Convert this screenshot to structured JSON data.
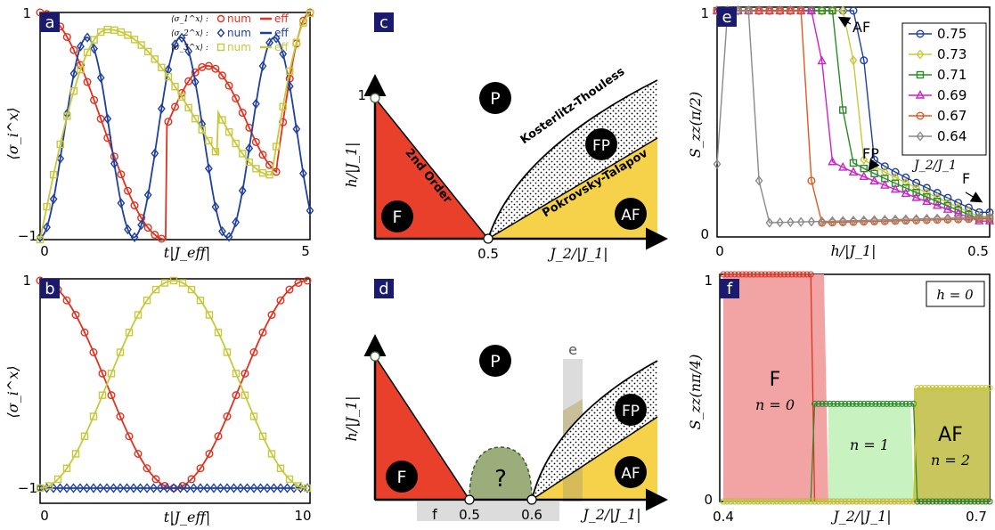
{
  "colors": {
    "red": "#e0321f",
    "blue": "#1f3f9f",
    "yellow": "#c8c83c",
    "green": "#2a8a2a",
    "magenta": "#cc22cc",
    "orange": "#e05a20",
    "gray": "#8a8a8a",
    "navy": "#1a1a6e",
    "redfill": "#e8402a",
    "yellowfill": "#f5d24a",
    "greenfill": "#9aad7a"
  },
  "panel_labels": {
    "a": "a",
    "b": "b",
    "c": "c",
    "d": "d",
    "e": "e",
    "f": "f"
  },
  "panel_a": {
    "ylabel": "⟨σ_i^x⟩",
    "xlabel": "t|J_eff|",
    "y_ticks": [
      "1",
      "−1"
    ],
    "x_ticks": [
      "0",
      "5"
    ],
    "legend": [
      {
        "label": "⟨σ_1^x⟩ : ",
        "num": "num",
        "eff": "eff"
      },
      {
        "label": "⟨σ_2^x⟩ : ",
        "num": "num",
        "eff": "eff"
      },
      {
        "label": "⟨σ_3^x⟩ : ",
        "num": "num",
        "eff": "eff"
      }
    ]
  },
  "panel_b": {
    "ylabel": "⟨σ_i^x⟩",
    "xlabel": "t|J_eff|",
    "y_ticks": [
      "1",
      "−1"
    ],
    "x_ticks": [
      "0",
      "10"
    ]
  },
  "panel_c": {
    "ylabel": "h/|J_1|",
    "xlabel": "J_2/|J_1|",
    "x_tick": "0.5",
    "y_tick": "1",
    "phase_P": "P",
    "phase_F": "F",
    "phase_FP": "FP",
    "phase_AF": "AF",
    "line_second_order": "2nd Order",
    "line_kt": "Kosterlitz-Thouless",
    "line_pt": "Pokrovsky-Talapov"
  },
  "panel_d": {
    "ylabel": "h/|J_1|",
    "xlabel": "J_2/|J_1|",
    "x_tick_1": "0.5",
    "x_tick_2": "0.6",
    "strip_f": "f",
    "strip_e": "e",
    "phase_P": "P",
    "phase_F": "F",
    "phase_FP": "FP",
    "phase_AF": "AF",
    "unknown": "?"
  },
  "panel_e": {
    "ylabel": "S_zz(π/2)",
    "xlabel": "h/|J_1|",
    "legend_title": "J_2/J_1",
    "legend": [
      "0.75",
      "0.73",
      "0.71",
      "0.69",
      "0.67",
      "0.64"
    ],
    "ann_AF": "AF",
    "ann_FP": "FP",
    "ann_F": "F",
    "y_ticks": [
      "1",
      "0"
    ],
    "x_ticks": [
      "0",
      "0.5"
    ]
  },
  "panel_f": {
    "ylabel": "S_zz(nπ/4)",
    "xlabel": "J_2/|J_1|",
    "box": "h = 0",
    "F_label": "F",
    "n0": "n = 0",
    "n1": "n = 1",
    "AF_label": "AF",
    "n2": "n = 2",
    "y_ticks": [
      "1",
      "0"
    ],
    "x_ticks": [
      "0.4",
      "0.7"
    ]
  }
}
